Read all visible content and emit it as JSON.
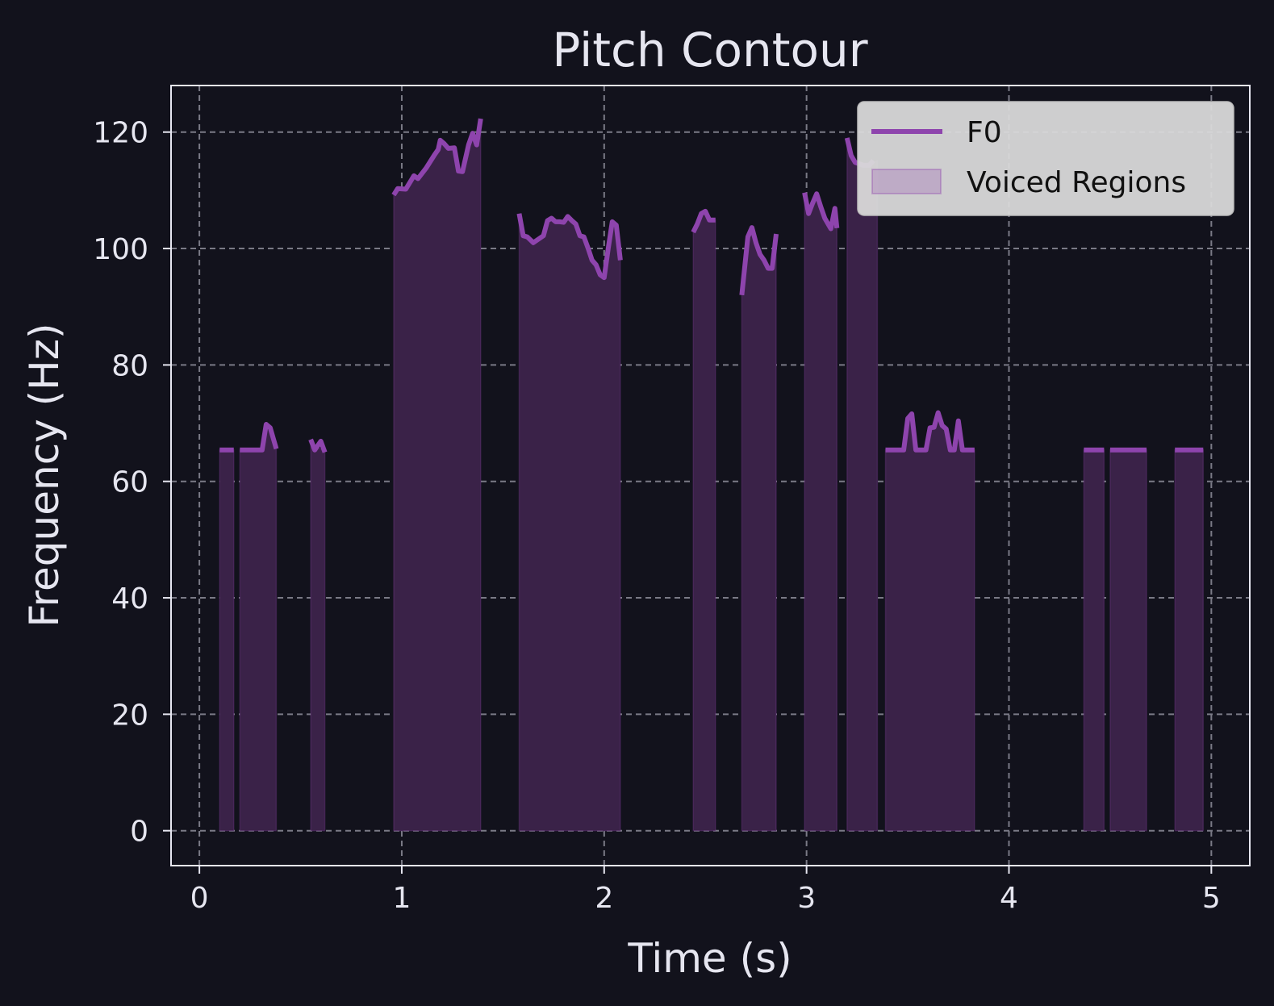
{
  "chart_data": {
    "type": "line",
    "title": "Pitch Contour",
    "xlabel": "Time (s)",
    "ylabel": "Frequency (Hz)",
    "xlim": [
      -0.14,
      5.19
    ],
    "ylim": [
      -6,
      128
    ],
    "x_ticks": [
      0,
      1,
      2,
      3,
      4,
      5
    ],
    "y_ticks": [
      0,
      20,
      40,
      60,
      80,
      100,
      120
    ],
    "grid": true,
    "legend_position": "top-right",
    "colors": {
      "background": "#12121c",
      "line": "#8e44ad",
      "fill": "#3a2248",
      "grid": "#7a7a86",
      "axes": "#e6e6f0",
      "legend_bg": "#d9d9d9"
    },
    "series": [
      {
        "name": "F0",
        "kind": "line",
        "segments": [
          [
            [
              0.1,
              65.4
            ],
            [
              0.17,
              65.4
            ]
          ],
          [
            [
              0.2,
              65.4
            ],
            [
              0.31,
              65.4
            ],
            [
              0.33,
              69.8
            ],
            [
              0.35,
              69.2
            ],
            [
              0.38,
              65.6
            ]
          ],
          [
            [
              0.55,
              67.2
            ],
            [
              0.57,
              65.4
            ],
            [
              0.6,
              66.9
            ],
            [
              0.62,
              65.0
            ]
          ],
          [
            [
              0.96,
              109.2
            ],
            [
              0.98,
              110.3
            ],
            [
              1.02,
              110.2
            ],
            [
              1.06,
              112.5
            ],
            [
              1.08,
              112.0
            ],
            [
              1.12,
              113.8
            ],
            [
              1.16,
              116.0
            ],
            [
              1.18,
              117.0
            ],
            [
              1.19,
              118.6
            ],
            [
              1.21,
              118.0
            ],
            [
              1.23,
              117.2
            ],
            [
              1.26,
              117.3
            ],
            [
              1.28,
              113.3
            ],
            [
              1.3,
              113.2
            ],
            [
              1.33,
              117.8
            ],
            [
              1.35,
              119.8
            ],
            [
              1.37,
              117.8
            ],
            [
              1.39,
              122.3
            ]
          ],
          [
            [
              1.58,
              106.0
            ],
            [
              1.6,
              102.2
            ],
            [
              1.62,
              102.0
            ],
            [
              1.65,
              101.0
            ],
            [
              1.7,
              102.2
            ],
            [
              1.72,
              104.8
            ],
            [
              1.74,
              105.2
            ],
            [
              1.76,
              104.6
            ],
            [
              1.78,
              104.6
            ],
            [
              1.8,
              104.5
            ],
            [
              1.82,
              105.5
            ],
            [
              1.84,
              104.8
            ],
            [
              1.86,
              104.2
            ],
            [
              1.88,
              102.2
            ],
            [
              1.9,
              102.0
            ],
            [
              1.92,
              100.1
            ],
            [
              1.94,
              98.0
            ],
            [
              1.96,
              97.2
            ],
            [
              1.98,
              95.5
            ],
            [
              2.0,
              95.0
            ],
            [
              2.02,
              100.0
            ],
            [
              2.04,
              104.6
            ],
            [
              2.06,
              104.0
            ],
            [
              2.08,
              98.0
            ]
          ],
          [
            [
              2.44,
              102.8
            ],
            [
              2.46,
              104.2
            ],
            [
              2.48,
              106.0
            ],
            [
              2.5,
              106.4
            ],
            [
              2.52,
              104.9
            ],
            [
              2.55,
              104.9
            ]
          ],
          [
            [
              2.68,
              92.0
            ],
            [
              2.71,
              102.0
            ],
            [
              2.73,
              103.6
            ],
            [
              2.75,
              101.0
            ],
            [
              2.77,
              99.0
            ],
            [
              2.79,
              98.0
            ],
            [
              2.81,
              96.6
            ],
            [
              2.83,
              96.6
            ],
            [
              2.85,
              102.5
            ]
          ],
          [
            [
              2.99,
              109.6
            ],
            [
              3.01,
              106.0
            ],
            [
              3.03,
              107.8
            ],
            [
              3.05,
              109.4
            ],
            [
              3.07,
              107.2
            ],
            [
              3.09,
              105.2
            ],
            [
              3.12,
              103.4
            ],
            [
              3.14,
              106.9
            ],
            [
              3.15,
              103.5
            ]
          ],
          [
            [
              3.2,
              119.0
            ],
            [
              3.22,
              116.0
            ],
            [
              3.24,
              114.8
            ],
            [
              3.28,
              114.3
            ],
            [
              3.31,
              114.3
            ],
            [
              3.33,
              115.1
            ]
          ],
          [
            [
              3.39,
              65.4
            ],
            [
              3.48,
              65.4
            ],
            [
              3.5,
              70.8
            ],
            [
              3.52,
              71.6
            ],
            [
              3.54,
              65.4
            ],
            [
              3.59,
              65.4
            ],
            [
              3.61,
              69.2
            ],
            [
              3.63,
              69.3
            ],
            [
              3.65,
              71.8
            ],
            [
              3.67,
              69.6
            ],
            [
              3.69,
              69.0
            ],
            [
              3.71,
              65.4
            ],
            [
              3.73,
              65.4
            ],
            [
              3.75,
              70.4
            ],
            [
              3.77,
              65.4
            ],
            [
              3.83,
              65.4
            ]
          ],
          [
            [
              4.37,
              65.4
            ],
            [
              4.47,
              65.4
            ]
          ],
          [
            [
              4.5,
              65.4
            ],
            [
              4.68,
              65.4
            ]
          ],
          [
            [
              4.82,
              65.4
            ],
            [
              4.96,
              65.4
            ]
          ]
        ]
      },
      {
        "name": "Voiced Regions",
        "kind": "fill",
        "regions": [
          [
            [
              0.1,
              65.4
            ],
            [
              0.17,
              65.4
            ]
          ],
          [
            [
              0.2,
              65.4
            ],
            [
              0.31,
              65.4
            ],
            [
              0.33,
              69.8
            ],
            [
              0.35,
              69.2
            ],
            [
              0.38,
              65.6
            ]
          ],
          [
            [
              0.55,
              66.5
            ],
            [
              0.62,
              65.2
            ]
          ],
          [
            [
              0.96,
              109.2
            ],
            [
              0.98,
              110.3
            ],
            [
              1.02,
              110.2
            ],
            [
              1.06,
              112.5
            ],
            [
              1.08,
              112.0
            ],
            [
              1.12,
              113.8
            ],
            [
              1.16,
              116.0
            ],
            [
              1.18,
              117.0
            ],
            [
              1.19,
              118.6
            ],
            [
              1.21,
              118.0
            ],
            [
              1.23,
              117.2
            ],
            [
              1.26,
              117.3
            ],
            [
              1.28,
              113.3
            ],
            [
              1.3,
              113.2
            ],
            [
              1.33,
              117.8
            ],
            [
              1.35,
              119.8
            ],
            [
              1.37,
              117.8
            ],
            [
              1.39,
              122.3
            ]
          ],
          [
            [
              1.58,
              106.0
            ],
            [
              1.6,
              102.2
            ],
            [
              1.62,
              102.0
            ],
            [
              1.65,
              101.0
            ],
            [
              1.7,
              102.2
            ],
            [
              1.72,
              104.8
            ],
            [
              1.74,
              105.2
            ],
            [
              1.76,
              104.6
            ],
            [
              1.78,
              104.6
            ],
            [
              1.8,
              104.5
            ],
            [
              1.82,
              105.5
            ],
            [
              1.84,
              104.8
            ],
            [
              1.86,
              104.2
            ],
            [
              1.88,
              102.2
            ],
            [
              1.9,
              102.0
            ],
            [
              1.92,
              100.1
            ],
            [
              1.94,
              98.0
            ],
            [
              1.96,
              97.2
            ],
            [
              1.98,
              95.5
            ],
            [
              2.0,
              95.0
            ],
            [
              2.02,
              100.0
            ],
            [
              2.04,
              104.6
            ],
            [
              2.06,
              104.0
            ],
            [
              2.08,
              98.0
            ]
          ],
          [
            [
              2.44,
              102.8
            ],
            [
              2.46,
              104.2
            ],
            [
              2.48,
              106.0
            ],
            [
              2.5,
              106.4
            ],
            [
              2.52,
              104.9
            ],
            [
              2.55,
              104.9
            ]
          ],
          [
            [
              2.68,
              92.0
            ],
            [
              2.71,
              102.0
            ],
            [
              2.73,
              103.6
            ],
            [
              2.75,
              101.0
            ],
            [
              2.77,
              99.0
            ],
            [
              2.79,
              98.0
            ],
            [
              2.81,
              96.6
            ],
            [
              2.83,
              96.6
            ],
            [
              2.85,
              102.5
            ]
          ],
          [
            [
              2.99,
              109.6
            ],
            [
              3.01,
              106.0
            ],
            [
              3.03,
              107.8
            ],
            [
              3.05,
              109.4
            ],
            [
              3.07,
              107.2
            ],
            [
              3.09,
              105.2
            ],
            [
              3.12,
              103.4
            ],
            [
              3.14,
              106.9
            ],
            [
              3.15,
              103.5
            ]
          ],
          [
            [
              3.2,
              119.0
            ],
            [
              3.22,
              116.0
            ],
            [
              3.24,
              114.8
            ],
            [
              3.28,
              114.3
            ],
            [
              3.31,
              114.3
            ],
            [
              3.35,
              115.1
            ]
          ],
          [
            [
              3.39,
              65.4
            ],
            [
              3.48,
              65.4
            ],
            [
              3.5,
              70.8
            ],
            [
              3.52,
              71.6
            ],
            [
              3.54,
              65.4
            ],
            [
              3.59,
              65.4
            ],
            [
              3.61,
              69.2
            ],
            [
              3.63,
              69.3
            ],
            [
              3.65,
              71.8
            ],
            [
              3.67,
              69.6
            ],
            [
              3.69,
              69.0
            ],
            [
              3.71,
              65.4
            ],
            [
              3.73,
              65.4
            ],
            [
              3.75,
              70.4
            ],
            [
              3.77,
              65.4
            ],
            [
              3.83,
              65.4
            ]
          ],
          [
            [
              4.37,
              65.4
            ],
            [
              4.47,
              65.4
            ]
          ],
          [
            [
              4.5,
              65.4
            ],
            [
              4.68,
              65.4
            ]
          ],
          [
            [
              4.82,
              65.4
            ],
            [
              4.96,
              65.4
            ]
          ]
        ]
      }
    ],
    "legend": [
      {
        "label": "F0",
        "swatch": "line"
      },
      {
        "label": "Voiced Regions",
        "swatch": "patch"
      }
    ]
  }
}
